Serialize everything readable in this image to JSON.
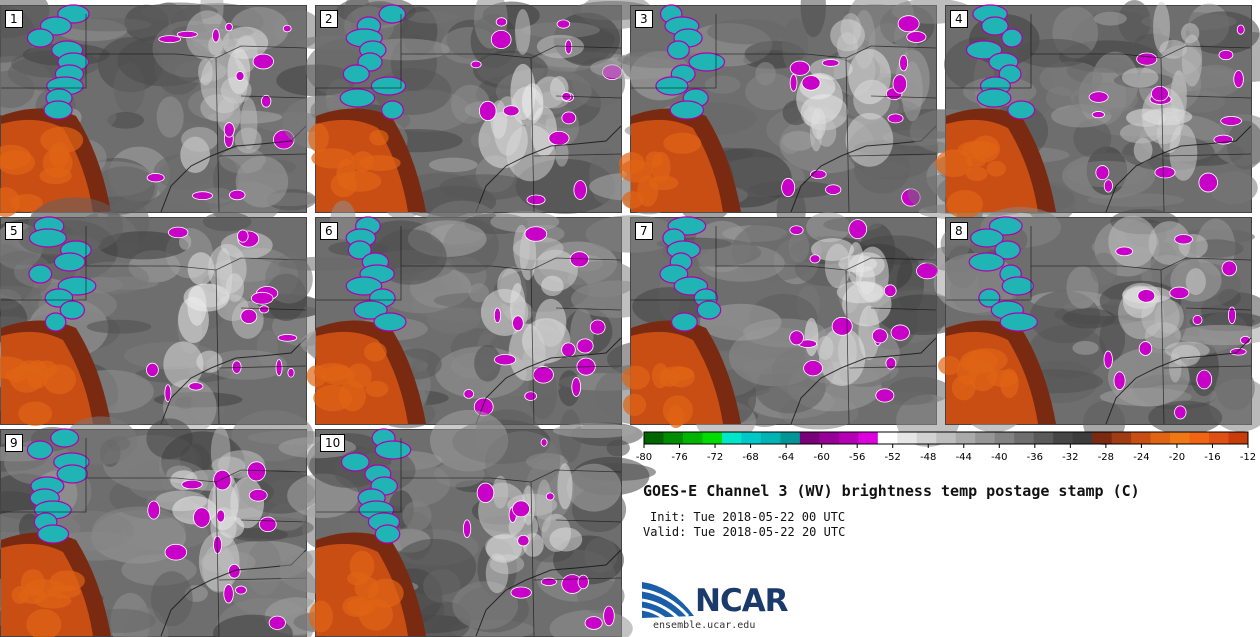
{
  "panels": [
    "1",
    "2",
    "3",
    "4",
    "5",
    "6",
    "7",
    "8",
    "9",
    "10"
  ],
  "colorbar": {
    "ticks": [
      "-80",
      "-76",
      "-72",
      "-68",
      "-64",
      "-60",
      "-56",
      "-52",
      "-48",
      "-44",
      "-40",
      "-36",
      "-32",
      "-28",
      "-24",
      "-20",
      "-16",
      "-12"
    ],
    "colors": [
      "#006400",
      "#008c00",
      "#00b400",
      "#00dc00",
      "#00e6c8",
      "#00c8c8",
      "#00b4b4",
      "#009696",
      "#780078",
      "#960096",
      "#b400b4",
      "#dc00dc",
      "#ffffff",
      "#e6e6e6",
      "#d2d2d2",
      "#bebebe",
      "#aaaaaa",
      "#969696",
      "#828282",
      "#6e6e6e",
      "#5a5a5a",
      "#464646",
      "#3c3c3c",
      "#7a2a10",
      "#a03c14",
      "#c84e14",
      "#e06414",
      "#f07814",
      "#f06414",
      "#e05014",
      "#c83c0a"
    ]
  },
  "title": "GOES-E Channel 3 (WV) brightness temp postage stamp (C)",
  "init": "Init: Tue 2018-05-22 00 UTC",
  "valid": "Valid: Tue 2018-05-22 20 UTC",
  "logo": {
    "text": "NCAR",
    "url": "ensemble.ucar.edu"
  }
}
